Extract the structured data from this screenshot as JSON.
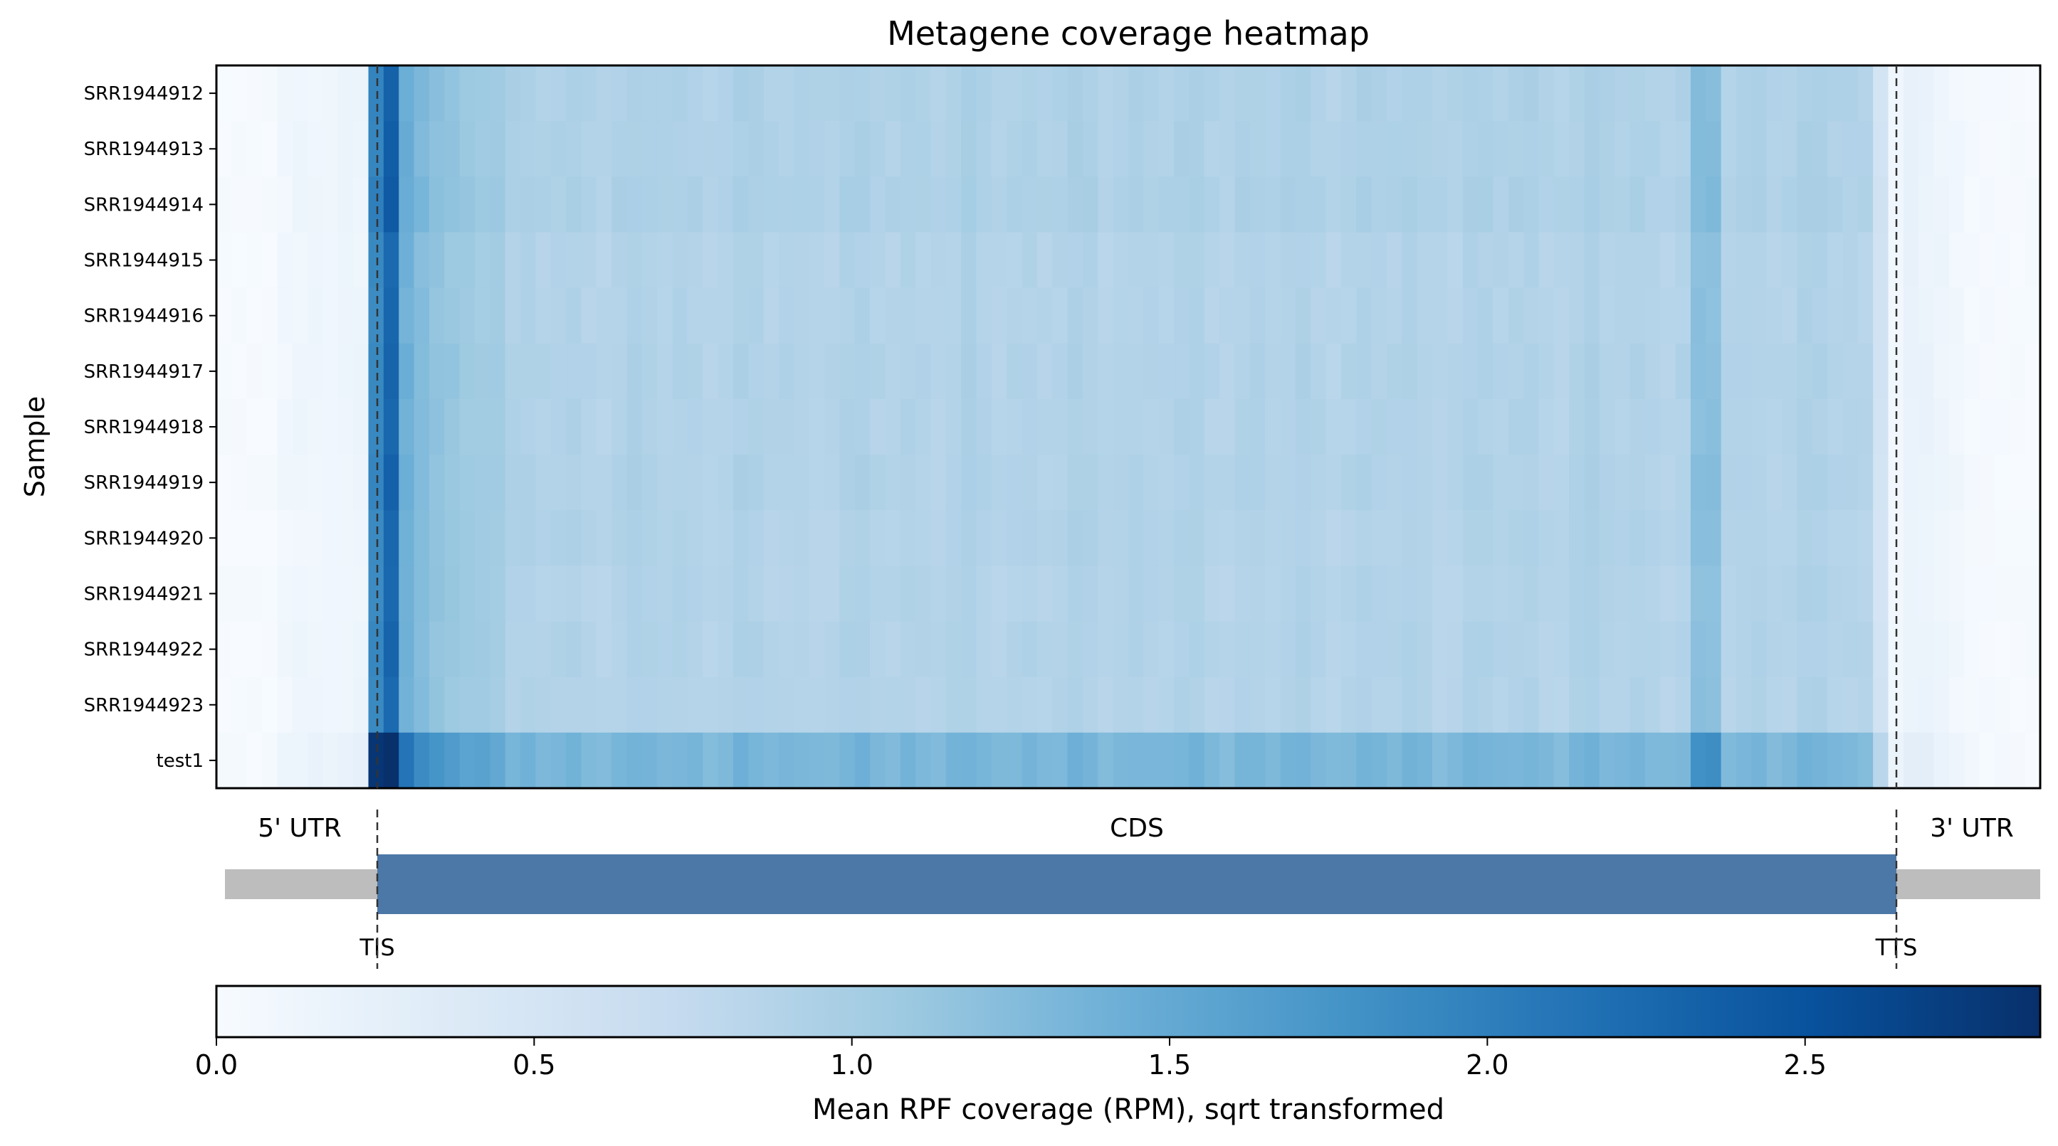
{
  "chart_data": {
    "type": "heatmap",
    "title": "Metagene coverage heatmap",
    "ylabel": "Sample",
    "rows": [
      "SRR1944912",
      "SRR1944913",
      "SRR1944914",
      "SRR1944915",
      "SRR1944916",
      "SRR1944917",
      "SRR1944918",
      "SRR1944919",
      "SRR1944920",
      "SRR1944921",
      "SRR1944922",
      "SRR1944923",
      "test1"
    ],
    "n_bins": 120,
    "regions": {
      "utr5_end_bin": 10,
      "cds_end_bin": 110
    },
    "region_labels": {
      "utr5": "5' UTR",
      "cds": "CDS",
      "utr3": "3' UTR"
    },
    "markers": {
      "tis": "TIS",
      "tts": "TTS"
    },
    "profile": {
      "utr5": [
        0.02,
        0.02,
        0.02,
        0.02,
        0.1,
        0.12,
        0.12,
        0.13,
        0.14,
        0.15
      ],
      "start_peak": [
        1.95,
        2.35
      ],
      "cds_early": [
        1.45,
        1.3,
        1.2,
        1.15,
        1.1,
        1.08,
        1.05
      ],
      "cds_level": 0.92,
      "cds_late_dip": 1.25,
      "cds_end": [
        0.88,
        0.55
      ],
      "utr3": [
        0.12,
        0.2,
        0.18,
        0.14,
        0.1,
        0.05,
        0.04,
        0.03,
        0.02,
        0.02
      ]
    },
    "row_scale": [
      1.0,
      1.0,
      1.02,
      0.96,
      0.96,
      0.98,
      0.97,
      0.98,
      0.97,
      0.96,
      0.97,
      0.96,
      1.45
    ],
    "colorbar": {
      "label": "Mean RPF coverage (RPM), sqrt transformed",
      "min": 0.0,
      "max": 2.87,
      "ticks": [
        "0.0",
        "0.5",
        "1.0",
        "1.5",
        "2.0",
        "2.5"
      ],
      "tick_values": [
        0.0,
        0.5,
        1.0,
        1.5,
        2.0,
        2.5
      ]
    },
    "colormap": "Blues",
    "colors": {
      "utr_bar": "#bdbdbd",
      "cds_bar": "#4c78a8"
    }
  }
}
